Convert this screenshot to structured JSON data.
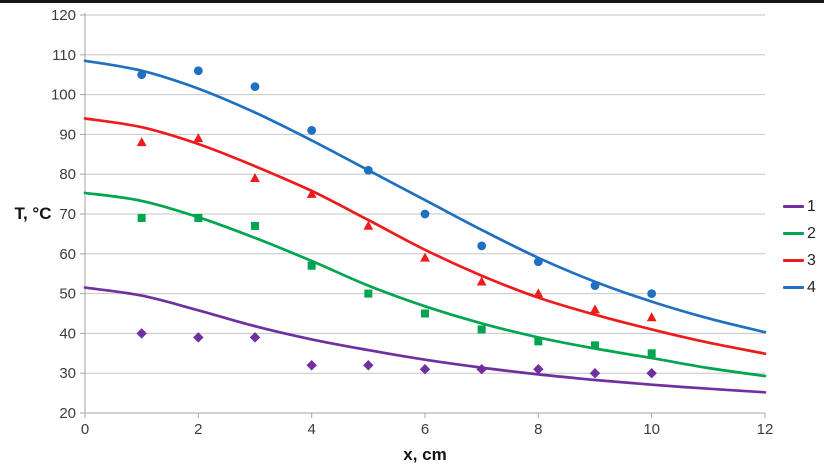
{
  "page": {
    "background_color": "#ffffff",
    "top_border_color": "#161616"
  },
  "chart_data": {
    "type": "scatter",
    "description": "Temperature T versus distance x: four experimental point series with smooth fitted curves",
    "title": "",
    "xlabel": "x, cm",
    "ylabel": "T, °C",
    "xlim": [
      0,
      12
    ],
    "ylim": [
      20,
      120
    ],
    "x_ticks": [
      0,
      2,
      4,
      6,
      8,
      10,
      12
    ],
    "y_ticks": [
      20,
      30,
      40,
      50,
      60,
      70,
      80,
      90,
      100,
      110,
      120
    ],
    "grid": "horizontal",
    "gridline_color": "#c6c6c6",
    "axis_color": "#a6a6a6",
    "tick_label_color": "#3d3d3d",
    "legend_position": "right",
    "points_x": [
      1,
      2,
      3,
      4,
      5,
      6,
      7,
      8,
      9,
      10
    ],
    "curve_x": [
      0,
      1,
      2,
      3,
      4,
      5,
      6,
      7,
      8,
      9,
      10,
      11,
      12
    ],
    "series": [
      {
        "name": "1",
        "color": "#7030A0",
        "marker": "diamond",
        "points_y": [
          40,
          39,
          39,
          32,
          32,
          31,
          31,
          31,
          30,
          30
        ],
        "curve_y": [
          51.5,
          49.5,
          45.8,
          41.8,
          38.5,
          35.8,
          33.4,
          31.4,
          29.7,
          28.3,
          27.1,
          26.1,
          25.2
        ]
      },
      {
        "name": "2",
        "color": "#00A550",
        "marker": "square",
        "points_y": [
          69,
          69,
          67,
          57,
          50,
          45,
          41,
          38,
          37,
          35
        ],
        "curve_y": [
          75.3,
          73.3,
          69.2,
          64.0,
          58.2,
          52.0,
          46.8,
          42.5,
          39.0,
          36.2,
          33.8,
          31.3,
          29.3
        ]
      },
      {
        "name": "3",
        "color": "#ED1C1C",
        "marker": "triangle",
        "points_y": [
          88,
          89,
          79,
          75,
          67,
          59,
          53,
          50,
          46,
          44
        ],
        "curve_y": [
          94.0,
          91.8,
          87.6,
          82.0,
          75.8,
          68.5,
          61.0,
          54.5,
          49.0,
          44.7,
          41.0,
          37.7,
          34.9
        ]
      },
      {
        "name": "4",
        "color": "#1F70C1",
        "marker": "circle",
        "points_y": [
          105,
          106,
          102,
          91,
          81,
          70,
          62,
          58,
          52,
          50
        ],
        "curve_y": [
          108.5,
          106.0,
          101.5,
          95.5,
          88.5,
          81.0,
          73.5,
          66.0,
          59.0,
          53.0,
          48.0,
          43.8,
          40.3
        ]
      }
    ]
  }
}
